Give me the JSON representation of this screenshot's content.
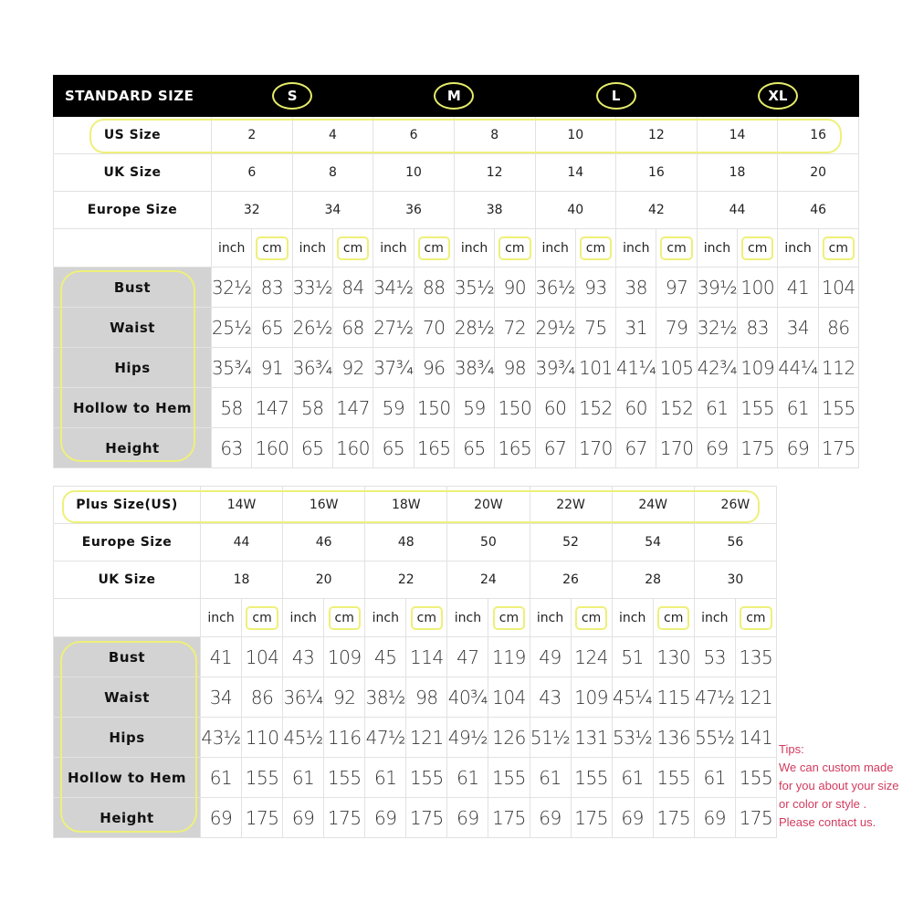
{
  "standard": {
    "title": "STANDARD SIZE",
    "size_letters": [
      "S",
      "M",
      "L",
      "XL"
    ],
    "size_rows": [
      {
        "label": "US Size",
        "values": [
          "2",
          "4",
          "6",
          "8",
          "10",
          "12",
          "14",
          "16"
        ]
      },
      {
        "label": "UK Size",
        "values": [
          "6",
          "8",
          "10",
          "12",
          "14",
          "16",
          "18",
          "20"
        ]
      },
      {
        "label": "Europe Size",
        "values": [
          "32",
          "34",
          "36",
          "38",
          "40",
          "42",
          "44",
          "46"
        ]
      }
    ],
    "measurements": [
      {
        "label": "Bust",
        "values": [
          "32½",
          "83",
          "33½",
          "84",
          "34½",
          "88",
          "35½",
          "90",
          "36½",
          "93",
          "38",
          "97",
          "39½",
          "100",
          "41",
          "104"
        ]
      },
      {
        "label": "Waist",
        "values": [
          "25½",
          "65",
          "26½",
          "68",
          "27½",
          "70",
          "28½",
          "72",
          "29½",
          "75",
          "31",
          "79",
          "32½",
          "83",
          "34",
          "86"
        ]
      },
      {
        "label": "Hips",
        "values": [
          "35¾",
          "91",
          "36¾",
          "92",
          "37¾",
          "96",
          "38¾",
          "98",
          "39¾",
          "101",
          "41¼",
          "105",
          "42¾",
          "109",
          "44¼",
          "112"
        ]
      },
      {
        "label": "Hollow to Hem",
        "values": [
          "58",
          "147",
          "58",
          "147",
          "59",
          "150",
          "59",
          "150",
          "60",
          "152",
          "60",
          "152",
          "61",
          "155",
          "61",
          "155"
        ]
      },
      {
        "label": "Height",
        "values": [
          "63",
          "160",
          "65",
          "160",
          "65",
          "165",
          "65",
          "165",
          "67",
          "170",
          "67",
          "170",
          "69",
          "175",
          "69",
          "175"
        ]
      }
    ]
  },
  "plus": {
    "size_rows": [
      {
        "label": "Plus Size(US)",
        "values": [
          "14W",
          "16W",
          "18W",
          "20W",
          "22W",
          "24W",
          "26W"
        ]
      },
      {
        "label": "Europe Size",
        "values": [
          "44",
          "46",
          "48",
          "50",
          "52",
          "54",
          "56"
        ]
      },
      {
        "label": "UK Size",
        "values": [
          "18",
          "20",
          "22",
          "24",
          "26",
          "28",
          "30"
        ]
      }
    ],
    "measurements": [
      {
        "label": "Bust",
        "values": [
          "41",
          "104",
          "43",
          "109",
          "45",
          "114",
          "47",
          "119",
          "49",
          "124",
          "51",
          "130",
          "53",
          "135"
        ]
      },
      {
        "label": "Waist",
        "values": [
          "34",
          "86",
          "36¼",
          "92",
          "38½",
          "98",
          "40¾",
          "104",
          "43",
          "109",
          "45¼",
          "115",
          "47½",
          "121"
        ]
      },
      {
        "label": "Hips",
        "values": [
          "43½",
          "110",
          "45½",
          "116",
          "47½",
          "121",
          "49½",
          "126",
          "51½",
          "131",
          "53½",
          "136",
          "55½",
          "141"
        ]
      },
      {
        "label": "Hollow to Hem",
        "values": [
          "61",
          "155",
          "61",
          "155",
          "61",
          "155",
          "61",
          "155",
          "61",
          "155",
          "61",
          "155",
          "61",
          "155"
        ]
      },
      {
        "label": "Height",
        "values": [
          "69",
          "175",
          "69",
          "175",
          "69",
          "175",
          "69",
          "175",
          "69",
          "175",
          "69",
          "175",
          "69",
          "175"
        ]
      }
    ]
  },
  "units": {
    "inch": "inch",
    "cm": "cm"
  },
  "tips": {
    "title": "Tips:",
    "lines": [
      "We can custom made",
      "for you about your size",
      "or color or style .",
      "Please contact us."
    ]
  },
  "colors": {
    "highlight": "#eef07a",
    "header_bg": "#000000",
    "label_bg": "#d3d3d3",
    "tips_text": "#d23a5e"
  }
}
